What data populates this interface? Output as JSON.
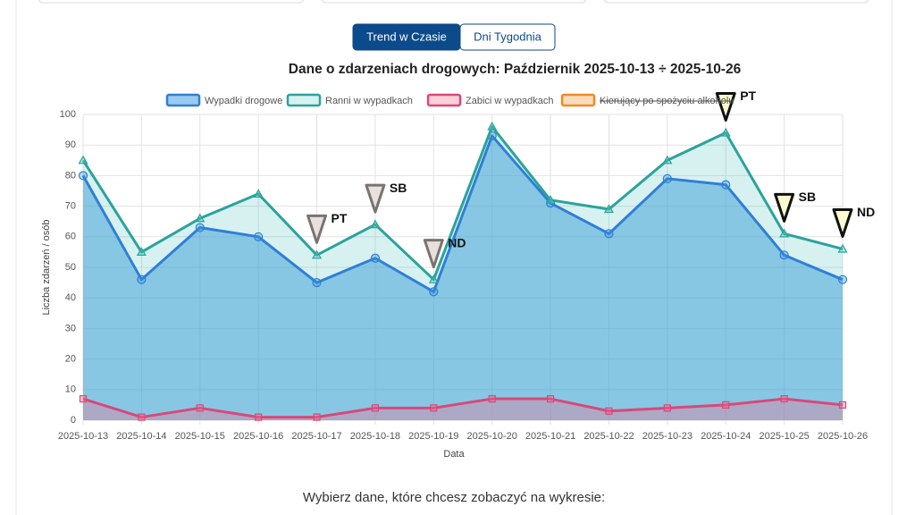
{
  "tabs": [
    "Trend w Czasie",
    "Dni Tygodnia"
  ],
  "active_tab": 0,
  "chart_data": {
    "type": "line",
    "title": "Dane o zdarzeniach drogowych: Październik 2025-10-13 ÷ 2025-10-26",
    "x_label": "Data",
    "y_label": "Liczba zdarzeń / osób",
    "categories": [
      "2025-10-13",
      "2025-10-14",
      "2025-10-15",
      "2025-10-16",
      "2025-10-17",
      "2025-10-18",
      "2025-10-19",
      "2025-10-20",
      "2025-10-21",
      "2025-10-22",
      "2025-10-23",
      "2025-10-24",
      "2025-10-25",
      "2025-10-26"
    ],
    "series": [
      {
        "name": "Wypadki drogowe",
        "color": "#2f7fd6",
        "fill": "rgba(54,150,220,0.5)",
        "marker": "circle",
        "values": [
          80,
          46,
          63,
          60,
          45,
          53,
          42,
          93,
          71,
          61,
          79,
          77,
          54,
          46
        ]
      },
      {
        "name": "Ranni w wypadkach",
        "color": "#2ba39b",
        "fill": "rgba(75,192,192,0.22)",
        "marker": "triangle",
        "values": [
          85,
          55,
          66,
          74,
          54,
          64,
          46,
          96,
          72,
          69,
          85,
          94,
          61,
          56
        ]
      },
      {
        "name": "Zabici w wypadkach",
        "color": "#d9487a",
        "fill": "rgba(255,99,132,0.3)",
        "marker": "square",
        "values": [
          7,
          1,
          4,
          1,
          1,
          4,
          4,
          7,
          7,
          3,
          4,
          5,
          7,
          5
        ]
      }
    ],
    "hidden_series": [
      {
        "name": "Kierujący po spożyciu alkoholu",
        "color": "#f08a24"
      }
    ],
    "ylim": [
      0,
      100
    ],
    "yticks": [
      0,
      10,
      20,
      30,
      40,
      50,
      60,
      70,
      80,
      90,
      100
    ],
    "grid": true,
    "annotations": [
      {
        "x": "2025-10-17",
        "label": "PT",
        "color": "#e8e0dc",
        "stroke": "#7a7470"
      },
      {
        "x": "2025-10-18",
        "label": "SB",
        "color": "#e8e0dc",
        "stroke": "#7a7470"
      },
      {
        "x": "2025-10-19",
        "label": "ND",
        "color": "#e8e0dc",
        "stroke": "#7a7470"
      },
      {
        "x": "2025-10-24",
        "label": "PT",
        "color": "#fbfbd0",
        "stroke": "#111111"
      },
      {
        "x": "2025-10-25",
        "label": "SB",
        "color": "#fbfbd0",
        "stroke": "#111111"
      },
      {
        "x": "2025-10-26",
        "label": "ND",
        "color": "#fbfbd0",
        "stroke": "#111111"
      }
    ]
  },
  "prompt": "Wybierz dane, które chcesz zobaczyć na wykresie:"
}
